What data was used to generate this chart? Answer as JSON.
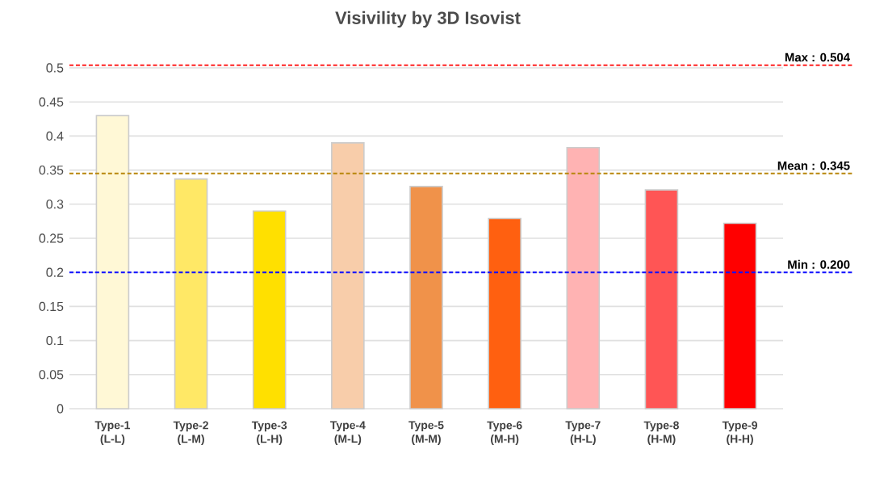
{
  "chart_data": {
    "type": "bar",
    "title": "Visivility by 3D Isovist",
    "categories": [
      "Type-1 (L-L)",
      "Type-2 (L-M)",
      "Type-3 (L-H)",
      "Type-4 (M-L)",
      "Type-5 (M-M)",
      "Type-6 (M-H)",
      "Type-7 (H-L)",
      "Type-8 (H-M)",
      "Type-9 (H-H)"
    ],
    "values": [
      0.43,
      0.337,
      0.29,
      0.39,
      0.326,
      0.279,
      0.383,
      0.321,
      0.272
    ],
    "colors": [
      "#fff8d6",
      "#ffe866",
      "#ffe000",
      "#f8cdaa",
      "#f0924a",
      "#ff6010",
      "#ffb3b3",
      "#ff5555",
      "#ff0000"
    ],
    "ylim": [
      0,
      0.5
    ],
    "yticks": [
      0,
      0.05,
      0.1,
      0.15,
      0.2,
      0.25,
      0.3,
      0.35,
      0.4,
      0.45,
      0.5
    ],
    "grid": "y",
    "ref_lines": [
      {
        "axis": "y",
        "value": 0.504,
        "label": "Max : 0.504",
        "color": "#ff2020",
        "line_style": "dashed"
      },
      {
        "axis": "y",
        "value": 0.345,
        "label": "Mean : 0.345",
        "color": "#b8860b",
        "line_style": "dashed"
      },
      {
        "axis": "y",
        "value": 0.2,
        "label": "Min : 0.200",
        "color": "#1010ff",
        "line_style": "dashed"
      }
    ]
  }
}
